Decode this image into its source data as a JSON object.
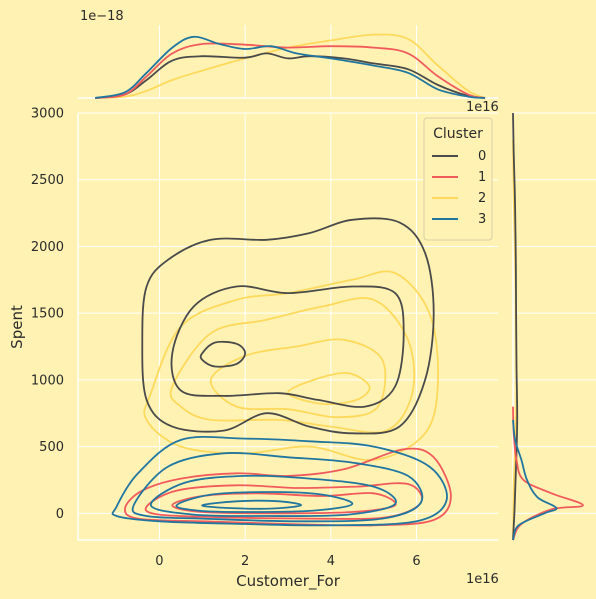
{
  "chart_data": {
    "type": "kde-jointplot",
    "xlabel": "Customer_For",
    "ylabel": "Spent",
    "x_offset_text": "1e16",
    "y_offset_text": "1e16",
    "top_marginal_offset_text": "1e−18",
    "xlim": [
      -1.9,
      7.9
    ],
    "ylim": [
      -200,
      3000
    ],
    "x_ticks": [
      0,
      2,
      4,
      6
    ],
    "x_tick_labels": [
      "0",
      "2",
      "4",
      "6"
    ],
    "y_ticks": [
      0,
      500,
      1000,
      1500,
      2000,
      2500,
      3000
    ],
    "y_tick_labels": [
      "0",
      "500",
      "1000",
      "1500",
      "2000",
      "2500",
      "3000"
    ],
    "grid": true,
    "legend": {
      "title": "Cluster",
      "placement": "top-right"
    },
    "series": [
      {
        "name": "0",
        "color": "#4A4A4A",
        "contours": [
          [
            [
              -0.3,
              1700
            ],
            [
              0.2,
              1900
            ],
            [
              1.2,
              2050
            ],
            [
              2.5,
              2050
            ],
            [
              3.5,
              2100
            ],
            [
              4.5,
              2200
            ],
            [
              5.6,
              2180
            ],
            [
              6.2,
              1950
            ],
            [
              6.4,
              1500
            ],
            [
              6.2,
              1000
            ],
            [
              5.6,
              650
            ],
            [
              4.5,
              600
            ],
            [
              3.5,
              650
            ],
            [
              2.5,
              750
            ],
            [
              1.5,
              620
            ],
            [
              0.3,
              650
            ],
            [
              -0.3,
              850
            ],
            [
              -0.4,
              1300
            ]
          ],
          [
            [
              0.3,
              1200
            ],
            [
              0.8,
              1550
            ],
            [
              1.8,
              1700
            ],
            [
              3.0,
              1650
            ],
            [
              4.5,
              1700
            ],
            [
              5.5,
              1650
            ],
            [
              5.7,
              1350
            ],
            [
              5.5,
              950
            ],
            [
              4.8,
              800
            ],
            [
              3.7,
              850
            ],
            [
              2.8,
              900
            ],
            [
              1.5,
              880
            ],
            [
              0.5,
              920
            ]
          ],
          [
            [
              1.0,
              1200
            ],
            [
              1.3,
              1280
            ],
            [
              1.8,
              1270
            ],
            [
              2.0,
              1200
            ],
            [
              1.8,
              1120
            ],
            [
              1.3,
              1100
            ],
            [
              1.0,
              1150
            ]
          ]
        ],
        "x_marginal": [
          [
            -1.5,
            0.0
          ],
          [
            -0.8,
            0.05
          ],
          [
            -0.3,
            0.25
          ],
          [
            0.3,
            0.52
          ],
          [
            1.0,
            0.58
          ],
          [
            2.0,
            0.56
          ],
          [
            2.5,
            0.62
          ],
          [
            3.0,
            0.55
          ],
          [
            3.5,
            0.58
          ],
          [
            4.3,
            0.55
          ],
          [
            5.0,
            0.48
          ],
          [
            5.8,
            0.4
          ],
          [
            6.5,
            0.18
          ],
          [
            7.2,
            0.03
          ],
          [
            7.6,
            0.0
          ]
        ],
        "y_marginal": [
          [
            -200,
            0.0
          ],
          [
            0,
            0.02
          ],
          [
            300,
            0.04
          ],
          [
            700,
            0.06
          ],
          [
            1100,
            0.05
          ],
          [
            1500,
            0.045
          ],
          [
            1900,
            0.04
          ],
          [
            2300,
            0.03
          ],
          [
            2700,
            0.01
          ],
          [
            3000,
            0.0
          ]
        ]
      },
      {
        "name": "1",
        "color": "#F25B5B",
        "contours": [
          [
            [
              -0.8,
              40
            ],
            [
              -0.4,
              170
            ],
            [
              0.5,
              260
            ],
            [
              1.8,
              300
            ],
            [
              3.0,
              280
            ],
            [
              4.3,
              330
            ],
            [
              5.7,
              480
            ],
            [
              6.4,
              420
            ],
            [
              6.8,
              130
            ],
            [
              6.4,
              -50
            ],
            [
              5.0,
              -90
            ],
            [
              3.0,
              -80
            ],
            [
              1.0,
              -60
            ],
            [
              -0.5,
              -40
            ]
          ],
          [
            [
              -0.3,
              50
            ],
            [
              0.4,
              170
            ],
            [
              1.8,
              210
            ],
            [
              3.2,
              190
            ],
            [
              4.6,
              200
            ],
            [
              5.8,
              220
            ],
            [
              6.1,
              80
            ],
            [
              5.3,
              -30
            ],
            [
              3.5,
              -40
            ],
            [
              1.5,
              -30
            ],
            [
              0.0,
              -10
            ]
          ],
          [
            [
              0.3,
              60
            ],
            [
              1.0,
              130
            ],
            [
              2.3,
              150
            ],
            [
              3.8,
              130
            ],
            [
              5.0,
              150
            ],
            [
              5.5,
              60
            ],
            [
              4.5,
              10
            ],
            [
              2.8,
              0
            ],
            [
              1.0,
              10
            ]
          ]
        ],
        "x_marginal": [
          [
            -1.5,
            0.0
          ],
          [
            -0.8,
            0.05
          ],
          [
            -0.3,
            0.3
          ],
          [
            0.3,
            0.62
          ],
          [
            1.0,
            0.75
          ],
          [
            2.0,
            0.74
          ],
          [
            3.0,
            0.7
          ],
          [
            4.0,
            0.72
          ],
          [
            5.0,
            0.7
          ],
          [
            5.8,
            0.62
          ],
          [
            6.5,
            0.3
          ],
          [
            7.2,
            0.05
          ],
          [
            7.6,
            0.0
          ]
        ],
        "y_marginal": [
          [
            -200,
            0.0
          ],
          [
            -80,
            0.12
          ],
          [
            30,
            0.55
          ],
          [
            60,
            1.0
          ],
          [
            150,
            0.55
          ],
          [
            250,
            0.15
          ],
          [
            400,
            0.05
          ],
          [
            600,
            0.01
          ],
          [
            800,
            0.0
          ]
        ]
      },
      {
        "name": "2",
        "color": "#FFD95C",
        "contours": [
          [
            [
              -0.2,
              900
            ],
            [
              0.5,
              1400
            ],
            [
              1.8,
              1600
            ],
            [
              3.0,
              1650
            ],
            [
              4.5,
              1750
            ],
            [
              5.5,
              1800
            ],
            [
              6.3,
              1500
            ],
            [
              6.5,
              1000
            ],
            [
              6.2,
              600
            ],
            [
              5.0,
              400
            ],
            [
              3.5,
              500
            ],
            [
              2.0,
              450
            ],
            [
              0.5,
              500
            ],
            [
              -0.3,
              700
            ]
          ],
          [
            [
              0.3,
              950
            ],
            [
              1.2,
              1350
            ],
            [
              2.5,
              1450
            ],
            [
              3.8,
              1550
            ],
            [
              5.0,
              1600
            ],
            [
              5.8,
              1300
            ],
            [
              5.9,
              900
            ],
            [
              5.3,
              620
            ],
            [
              4.0,
              650
            ],
            [
              2.8,
              700
            ],
            [
              1.2,
              700
            ],
            [
              0.5,
              800
            ]
          ],
          [
            [
              1.2,
              1000
            ],
            [
              2.0,
              1180
            ],
            [
              3.2,
              1250
            ],
            [
              4.3,
              1300
            ],
            [
              5.2,
              1150
            ],
            [
              5.1,
              800
            ],
            [
              4.2,
              720
            ],
            [
              3.0,
              780
            ],
            [
              1.8,
              800
            ]
          ],
          [
            [
              3.0,
              900
            ],
            [
              3.6,
              1000
            ],
            [
              4.4,
              1050
            ],
            [
              4.9,
              950
            ],
            [
              4.6,
              850
            ],
            [
              3.8,
              820
            ]
          ]
        ],
        "x_marginal": [
          [
            -1.5,
            0.0
          ],
          [
            -0.8,
            0.02
          ],
          [
            -0.3,
            0.1
          ],
          [
            0.3,
            0.25
          ],
          [
            1.0,
            0.38
          ],
          [
            2.0,
            0.55
          ],
          [
            3.0,
            0.7
          ],
          [
            4.0,
            0.8
          ],
          [
            5.0,
            0.88
          ],
          [
            5.8,
            0.82
          ],
          [
            6.5,
            0.45
          ],
          [
            7.2,
            0.1
          ],
          [
            7.6,
            0.0
          ]
        ],
        "y_marginal": [
          [
            -200,
            0.0
          ],
          [
            200,
            0.01
          ],
          [
            500,
            0.03
          ],
          [
            900,
            0.05
          ],
          [
            1300,
            0.045
          ],
          [
            1700,
            0.04
          ],
          [
            2100,
            0.02
          ],
          [
            2500,
            0.005
          ],
          [
            2800,
            0.0
          ]
        ]
      },
      {
        "name": "3",
        "color": "#2176A0",
        "contours": [
          [
            [
              -1.0,
              50
            ],
            [
              -0.5,
              300
            ],
            [
              0.5,
              550
            ],
            [
              2.0,
              560
            ],
            [
              3.5,
              540
            ],
            [
              5.0,
              500
            ],
            [
              6.3,
              350
            ],
            [
              6.7,
              100
            ],
            [
              6.0,
              -60
            ],
            [
              4.0,
              -90
            ],
            [
              2.0,
              -80
            ],
            [
              0.0,
              -60
            ],
            [
              -1.0,
              -20
            ]
          ],
          [
            [
              -0.6,
              60
            ],
            [
              0.2,
              350
            ],
            [
              1.5,
              450
            ],
            [
              3.0,
              420
            ],
            [
              4.5,
              380
            ],
            [
              5.8,
              280
            ],
            [
              6.1,
              80
            ],
            [
              5.2,
              -40
            ],
            [
              3.2,
              -60
            ],
            [
              1.0,
              -40
            ],
            [
              -0.3,
              -20
            ]
          ],
          [
            [
              -0.2,
              60
            ],
            [
              0.6,
              230
            ],
            [
              2.0,
              280
            ],
            [
              3.5,
              260
            ],
            [
              5.0,
              200
            ],
            [
              5.5,
              70
            ],
            [
              4.4,
              -10
            ],
            [
              2.5,
              -20
            ],
            [
              0.8,
              -10
            ]
          ],
          [
            [
              0.4,
              60
            ],
            [
              1.2,
              140
            ],
            [
              2.6,
              160
            ],
            [
              3.8,
              140
            ],
            [
              4.5,
              70
            ],
            [
              3.6,
              20
            ],
            [
              2.0,
              10
            ],
            [
              0.9,
              20
            ]
          ],
          [
            [
              1.0,
              60
            ],
            [
              1.8,
              90
            ],
            [
              2.8,
              90
            ],
            [
              3.3,
              60
            ],
            [
              2.6,
              35
            ],
            [
              1.6,
              40
            ]
          ]
        ],
        "x_marginal": [
          [
            -1.5,
            0.0
          ],
          [
            -0.8,
            0.08
          ],
          [
            -0.3,
            0.35
          ],
          [
            0.3,
            0.7
          ],
          [
            0.8,
            0.85
          ],
          [
            1.4,
            0.75
          ],
          [
            2.0,
            0.68
          ],
          [
            2.6,
            0.72
          ],
          [
            3.2,
            0.62
          ],
          [
            4.0,
            0.55
          ],
          [
            5.0,
            0.45
          ],
          [
            5.8,
            0.35
          ],
          [
            6.5,
            0.12
          ],
          [
            7.2,
            0.02
          ],
          [
            7.6,
            0.0
          ]
        ],
        "y_marginal": [
          [
            -200,
            0.0
          ],
          [
            -90,
            0.08
          ],
          [
            0,
            0.45
          ],
          [
            40,
            0.62
          ],
          [
            120,
            0.35
          ],
          [
            250,
            0.2
          ],
          [
            400,
            0.12
          ],
          [
            550,
            0.03
          ],
          [
            700,
            0.0
          ]
        ]
      }
    ]
  }
}
